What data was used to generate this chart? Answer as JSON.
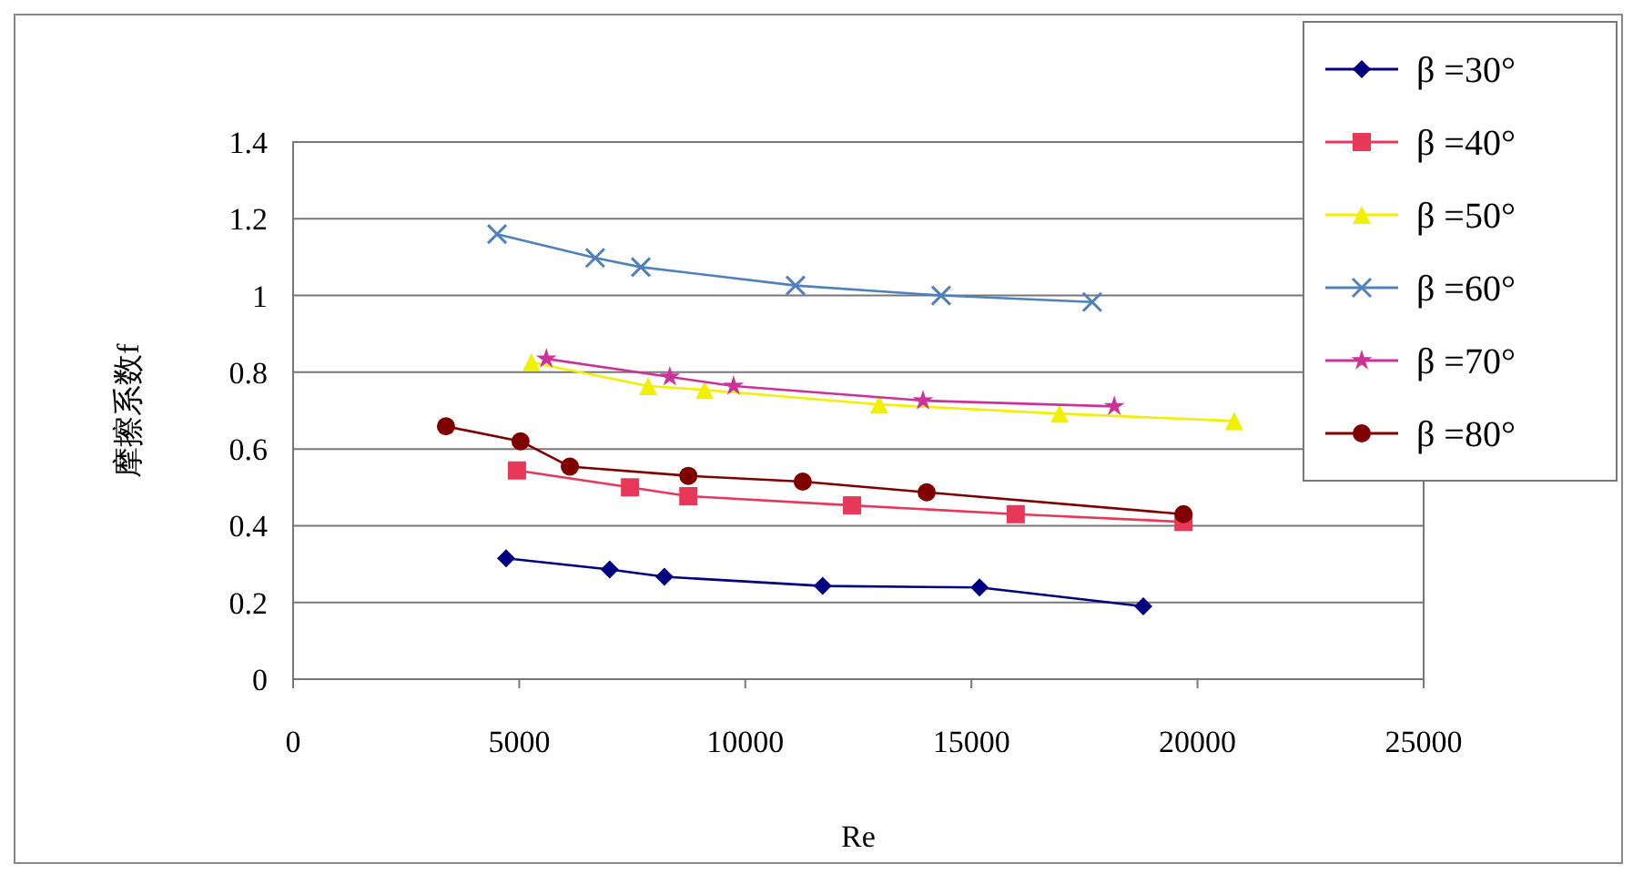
{
  "chart_data": {
    "type": "line",
    "xlabel": "Re",
    "ylabel": "摩擦系数f",
    "xlim": [
      0,
      25000
    ],
    "xticks": [
      0,
      5000,
      10000,
      15000,
      20000,
      25000
    ],
    "ylim": [
      0,
      1.4
    ],
    "yticks": [
      0,
      {
        "value": 0.2,
        "label": "0.2"
      },
      {
        "value": 0.4,
        "label": "0.4"
      },
      {
        "value": 0.6,
        "label": "0.6"
      },
      {
        "value": 0.8,
        "label": "0.8"
      },
      1,
      {
        "value": 1.2,
        "label": "1.2"
      },
      {
        "value": 1.4,
        "label": "1.4"
      }
    ],
    "grid": "y",
    "legend": "top right",
    "series": [
      {
        "name": "β =30°",
        "color": "#000080",
        "marker": "diamond",
        "x": [
          4710,
          7000,
          8210,
          11710,
          15180,
          18800
        ],
        "values": [
          0.315,
          0.286,
          0.267,
          0.243,
          0.239,
          0.19
        ]
      },
      {
        "name": "β =40°",
        "color": "#e8385a",
        "marker": "square",
        "x": [
          4950,
          7450,
          8740,
          12360,
          15980,
          19690
        ],
        "values": [
          0.544,
          0.5,
          0.477,
          0.453,
          0.43,
          0.41
        ]
      },
      {
        "name": "β =50°",
        "color": "#f0f000",
        "marker": "triangle",
        "x": [
          5270,
          7850,
          9100,
          12960,
          16950,
          20810
        ],
        "values": [
          0.826,
          0.764,
          0.754,
          0.716,
          0.692,
          0.673
        ]
      },
      {
        "name": "β =60°",
        "color": "#4f81bd",
        "marker": "cross",
        "x": [
          4510,
          6680,
          7690,
          11110,
          14330,
          17670
        ],
        "values": [
          1.16,
          1.098,
          1.074,
          1.026,
          1.0,
          0.983
        ]
      },
      {
        "name": "β =70°",
        "color": "#cc3399",
        "marker": "star",
        "x": [
          5600,
          8330,
          9740,
          13930,
          18160
        ],
        "values": [
          0.835,
          0.788,
          0.764,
          0.726,
          0.711
        ]
      },
      {
        "name": "β =80°",
        "color": "#800000",
        "marker": "circle",
        "x": [
          3380,
          5030,
          6120,
          8740,
          11270,
          14010,
          19690
        ],
        "values": [
          0.659,
          0.62,
          0.554,
          0.53,
          0.515,
          0.487,
          0.43
        ]
      }
    ]
  }
}
